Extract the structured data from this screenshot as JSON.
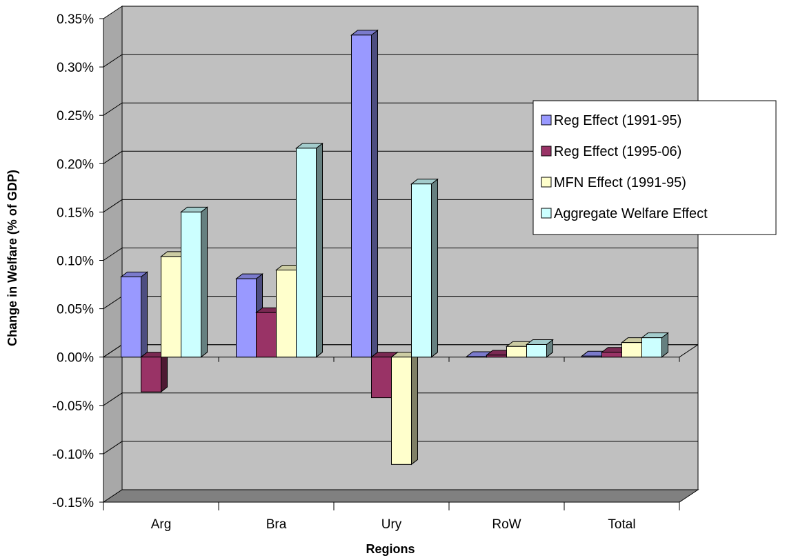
{
  "chart_data": {
    "type": "bar",
    "title": "",
    "xlabel": "Regions",
    "ylabel": "Change in Welfare (% of GDP)",
    "categories": [
      "Arg",
      "Bra",
      "Ury",
      "RoW",
      "Total"
    ],
    "series": [
      {
        "name": "Reg Effect (1991-95)",
        "color": "#9999ff",
        "values": [
          0.083,
          0.081,
          0.333,
          0.0005,
          0.001
        ]
      },
      {
        "name": "Reg Effect (1995-06)",
        "color": "#993366",
        "values": [
          -0.036,
          0.046,
          -0.042,
          0.002,
          0.005
        ]
      },
      {
        "name": "MFN Effect (1991-95)",
        "color": "#ffffcc",
        "values": [
          0.104,
          0.09,
          -0.111,
          0.011,
          0.015
        ]
      },
      {
        "name": "Aggregate Welfare Effect",
        "color": "#ccffff",
        "values": [
          0.15,
          0.216,
          0.179,
          0.013,
          0.02
        ]
      }
    ],
    "yticks": [
      "0.35%",
      "0.30%",
      "0.25%",
      "0.20%",
      "0.15%",
      "0.10%",
      "0.05%",
      "0.00%",
      "-0.05%",
      "-0.10%",
      "-0.15%"
    ],
    "ylim": [
      -0.15,
      0.35
    ],
    "grid": true,
    "chart_style": "3d-clustered-column",
    "wall_color": "#c0c0c0",
    "floor_color": "#808080",
    "legend_position": "right"
  }
}
